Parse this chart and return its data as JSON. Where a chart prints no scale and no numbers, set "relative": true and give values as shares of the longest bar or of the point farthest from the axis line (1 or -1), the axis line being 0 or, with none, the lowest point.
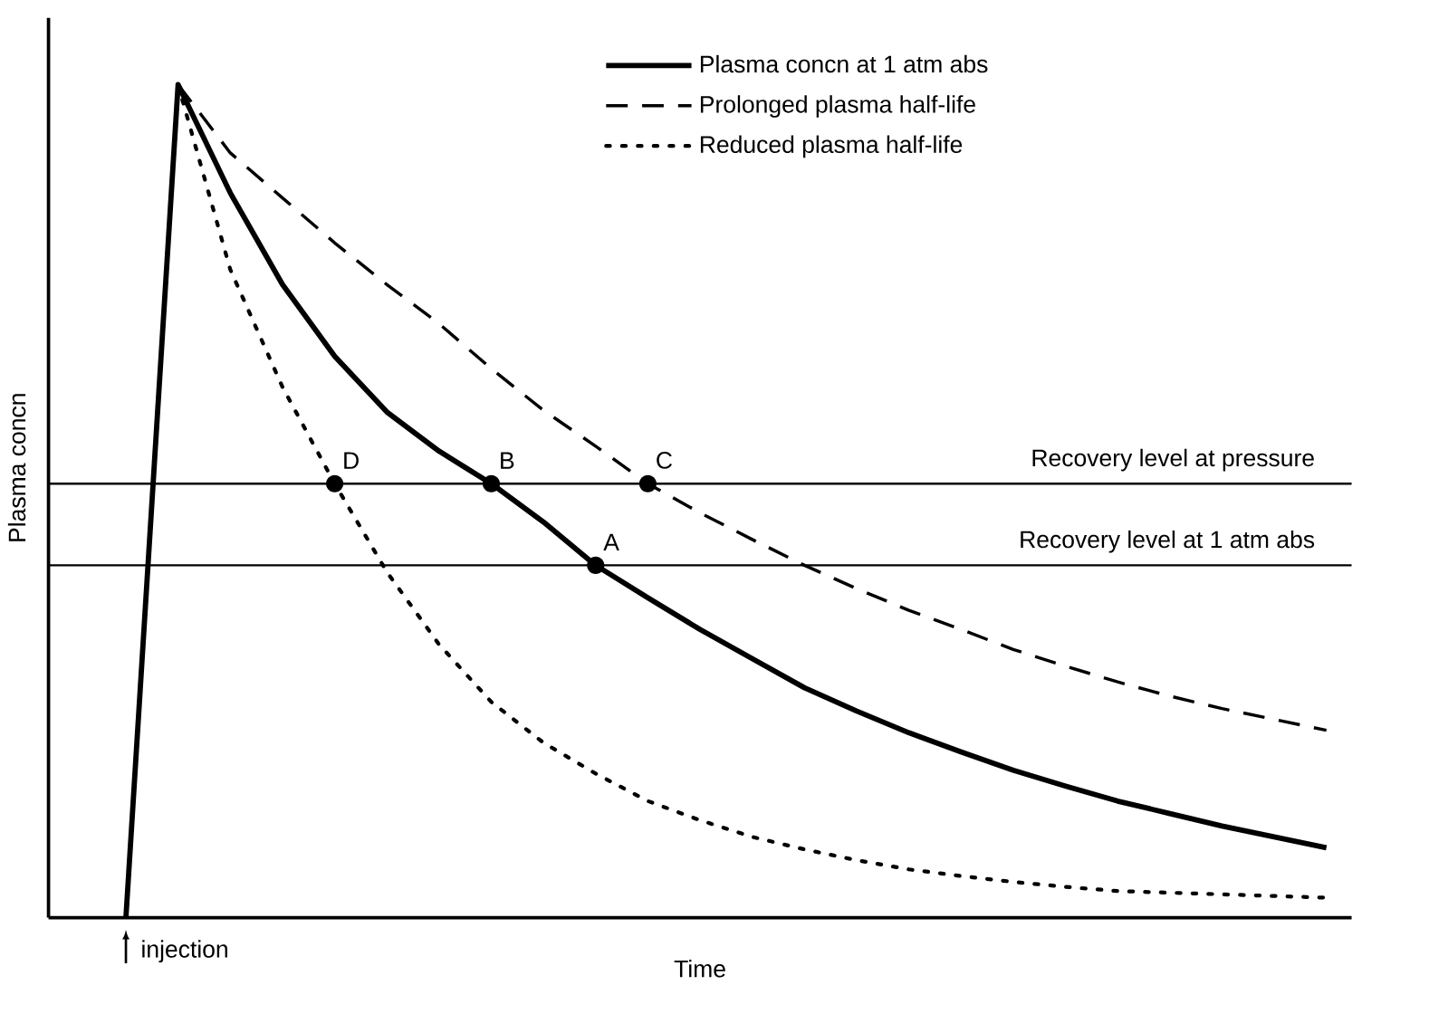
{
  "chart_data": {
    "type": "line",
    "relative": true,
    "xlabel": "Time",
    "ylabel": "Plasma concn",
    "legend": "top right",
    "annotations": [
      "injection",
      {
        "text": "D",
        "y": 0.521
      },
      {
        "text": "B",
        "y": 0.521
      },
      {
        "text": "C",
        "y": 0.521
      },
      {
        "text": "A",
        "y": 0.423
      }
    ],
    "categories": [
      null,
      null,
      null,
      null,
      null,
      null,
      null,
      null,
      null,
      null,
      null,
      null,
      null,
      null,
      null,
      null,
      null,
      null,
      null,
      null,
      null,
      null,
      null,
      null
    ],
    "series": [
      {
        "name": "Plasma concn at 1 atm abs",
        "color": "#000000",
        "line_style": "solid",
        "values": [
          0,
          1.0,
          0.87,
          0.76,
          0.674,
          0.607,
          0.56,
          0.521,
          0.475,
          0.423,
          0.384,
          0.346,
          0.311,
          0.276,
          0.248,
          0.222,
          0.199,
          0.177,
          0.158,
          0.14,
          0.125,
          0.11,
          0.097,
          0.084
        ]
      },
      {
        "name": "Prolonged plasma half-life",
        "color": "#000000",
        "line_style": "dashed",
        "values": [
          null,
          1.0,
          0.918,
          0.864,
          0.81,
          0.76,
          0.713,
          0.659,
          0.609,
          0.566,
          0.521,
          0.486,
          0.454,
          0.423,
          0.395,
          0.369,
          0.346,
          0.322,
          0.302,
          0.283,
          0.266,
          0.251,
          0.238,
          0.225
        ]
      },
      {
        "name": "Reduced plasma half-life",
        "color": "#000000",
        "line_style": "dotted",
        "values": [
          null,
          1.0,
          0.778,
          0.637,
          0.521,
          0.415,
          0.328,
          0.259,
          0.21,
          0.173,
          0.14,
          0.117,
          0.097,
          0.082,
          0.069,
          0.058,
          0.05,
          0.043,
          0.037,
          0.032,
          0.03,
          0.028,
          0.026,
          0.024
        ]
      }
    ],
    "ref_lines": [
      {
        "axis": "y",
        "value": 0.521,
        "label": "Recovery level at pressure"
      },
      {
        "axis": "y",
        "value": 0.423,
        "label": "Recovery level at 1 atm abs"
      }
    ]
  }
}
